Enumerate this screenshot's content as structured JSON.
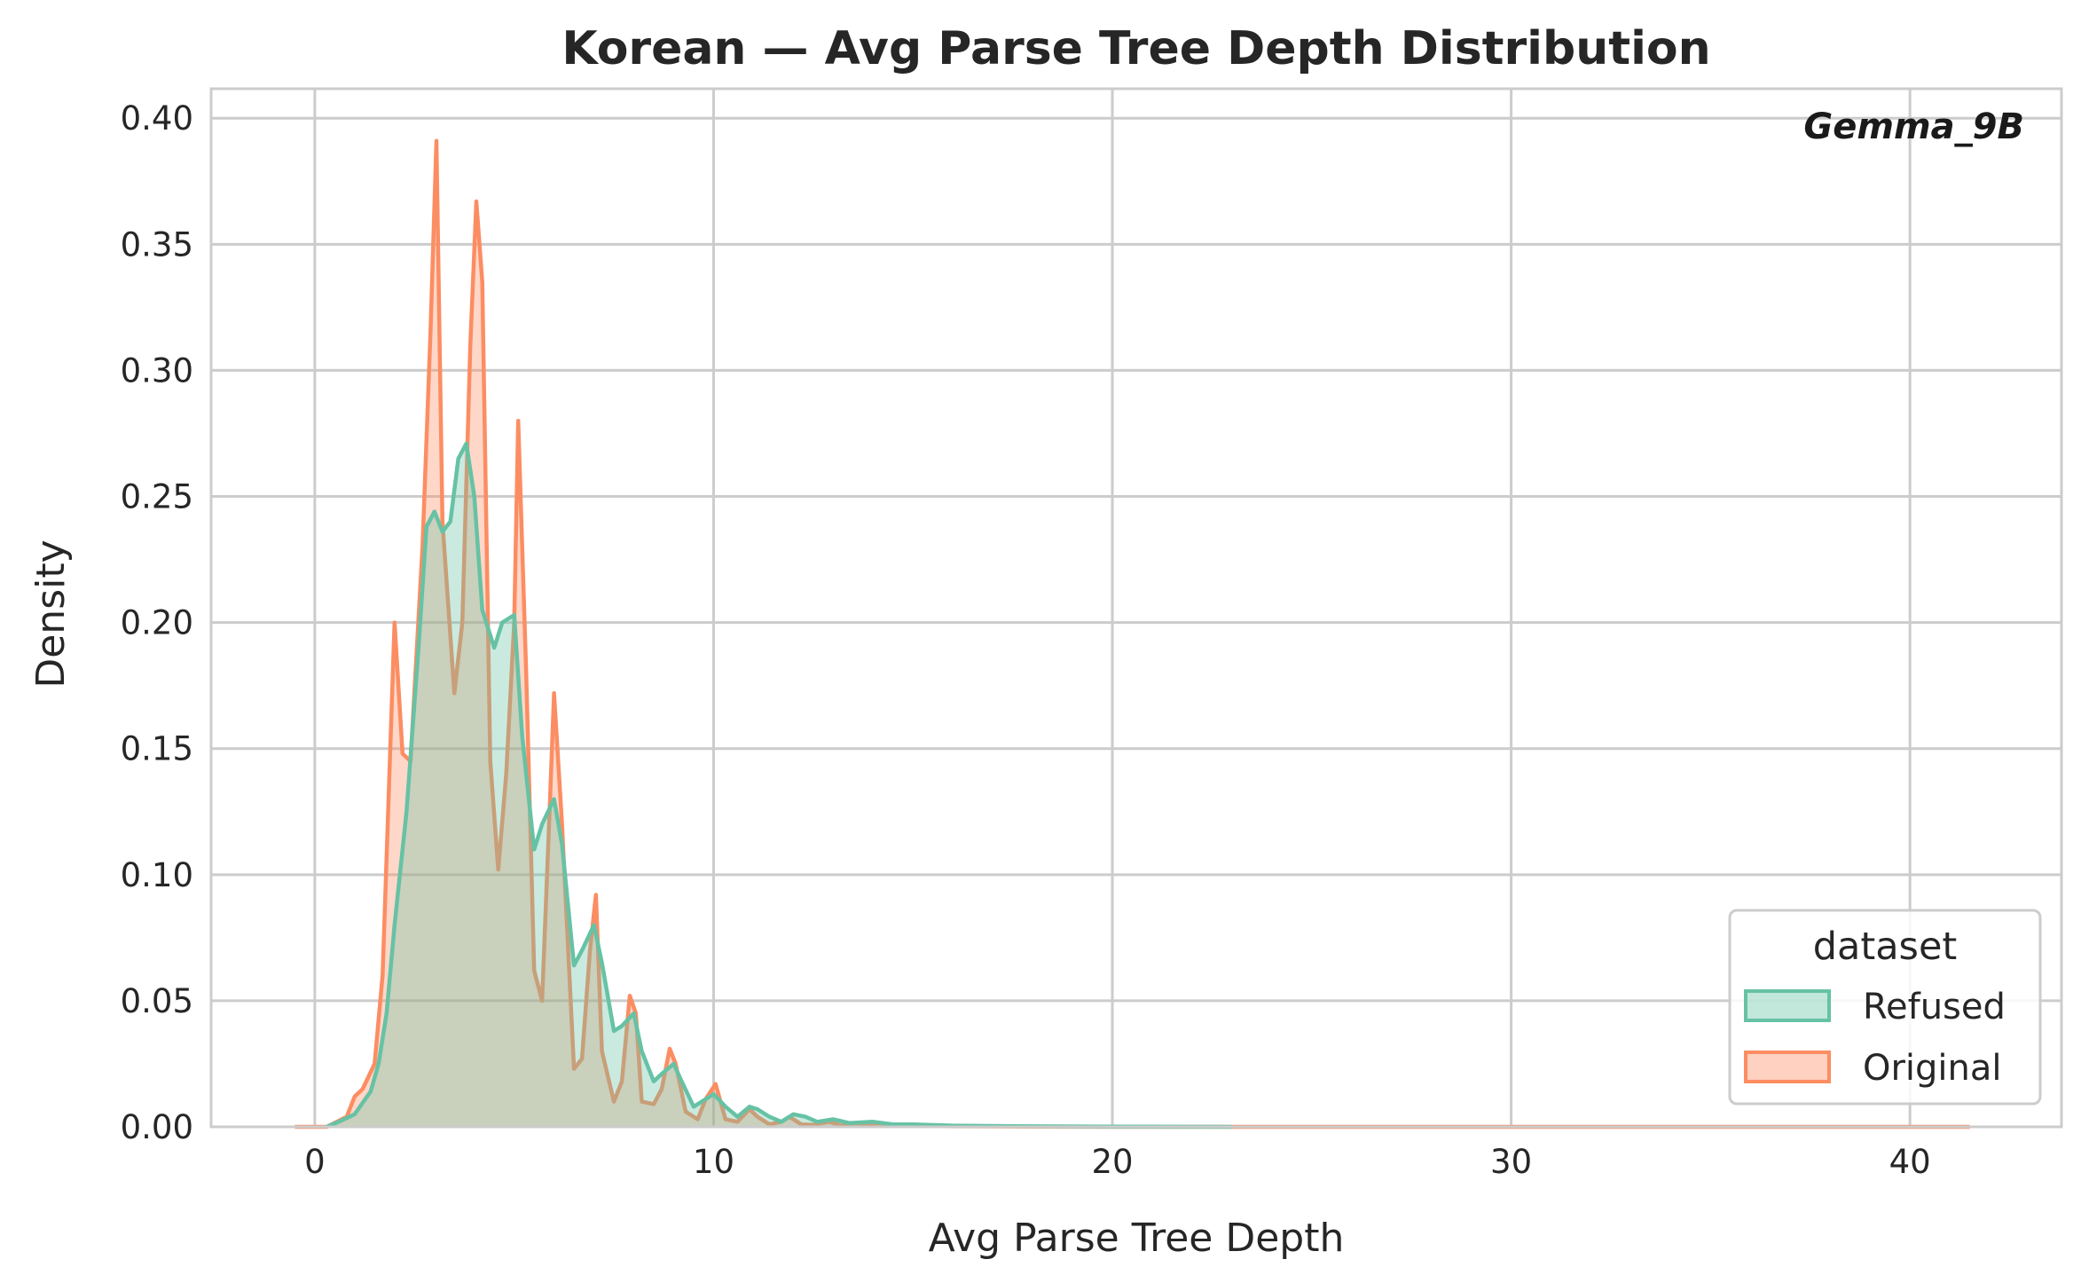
{
  "chart_data": {
    "type": "area",
    "title": "Korean — Avg Parse Tree Depth Distribution",
    "xlabel": "Avg Parse Tree Depth",
    "ylabel": "Density",
    "xlim": [
      -2.6,
      43.8
    ],
    "ylim": [
      0,
      0.4117
    ],
    "xticks": [
      0,
      10,
      20,
      30,
      40
    ],
    "yticks": [
      0.0,
      0.05,
      0.1,
      0.15,
      0.2,
      0.25,
      0.3,
      0.35,
      0.4
    ],
    "xtick_labels": [
      "0",
      "10",
      "20",
      "30",
      "40"
    ],
    "ytick_labels": [
      "0.00",
      "0.05",
      "0.10",
      "0.15",
      "0.20",
      "0.25",
      "0.30",
      "0.35",
      "0.40"
    ],
    "grid": true,
    "annotation": "Gemma_9B",
    "legend": {
      "title": "dataset",
      "placement": "lower-right"
    },
    "series": [
      {
        "name": "Original",
        "color": "#fc8d62",
        "x": [
          -0.5,
          0.3,
          0.8,
          1.0,
          1.2,
          1.5,
          1.7,
          2.0,
          2.2,
          2.4,
          2.7,
          2.9,
          3.05,
          3.2,
          3.5,
          3.7,
          3.9,
          4.05,
          4.2,
          4.4,
          4.6,
          4.8,
          5.0,
          5.1,
          5.3,
          5.5,
          5.7,
          5.9,
          6.0,
          6.2,
          6.5,
          6.7,
          6.9,
          7.05,
          7.2,
          7.5,
          7.7,
          7.9,
          8.05,
          8.2,
          8.5,
          8.7,
          8.9,
          9.05,
          9.3,
          9.6,
          9.8,
          10.05,
          10.3,
          10.6,
          10.9,
          11.1,
          11.4,
          11.7,
          11.9,
          12.2,
          12.5,
          12.9,
          13.2,
          13.6,
          14.0,
          15.0,
          16.0,
          18.0,
          20.0,
          25.0,
          30.0,
          35.0,
          41.5
        ],
        "values": [
          0.0,
          0.0,
          0.004,
          0.012,
          0.015,
          0.025,
          0.06,
          0.2,
          0.148,
          0.145,
          0.23,
          0.315,
          0.391,
          0.24,
          0.172,
          0.2,
          0.31,
          0.367,
          0.335,
          0.145,
          0.102,
          0.14,
          0.2,
          0.28,
          0.18,
          0.062,
          0.05,
          0.13,
          0.172,
          0.12,
          0.023,
          0.027,
          0.07,
          0.092,
          0.03,
          0.01,
          0.018,
          0.052,
          0.045,
          0.01,
          0.009,
          0.015,
          0.031,
          0.025,
          0.006,
          0.003,
          0.011,
          0.017,
          0.003,
          0.002,
          0.007,
          0.004,
          0.001,
          0.002,
          0.004,
          0.001,
          0.0008,
          0.002,
          0.0005,
          0.001,
          0.0005,
          0.0004,
          0.0002,
          0.0001,
          0.0,
          0.0,
          0.0,
          0.0,
          0.0
        ]
      },
      {
        "name": "Refused",
        "color": "#66c2a5",
        "x": [
          0.3,
          0.6,
          1.0,
          1.4,
          1.6,
          1.8,
          2.0,
          2.3,
          2.6,
          2.8,
          3.0,
          3.2,
          3.4,
          3.6,
          3.8,
          4.0,
          4.2,
          4.5,
          4.7,
          5.0,
          5.2,
          5.5,
          5.7,
          6.0,
          6.2,
          6.5,
          6.7,
          7.0,
          7.2,
          7.5,
          7.7,
          8.0,
          8.2,
          8.5,
          8.7,
          9.0,
          9.2,
          9.5,
          9.7,
          10.0,
          10.3,
          10.6,
          10.9,
          11.1,
          11.4,
          11.7,
          12.0,
          12.3,
          12.6,
          13.0,
          13.4,
          14.0,
          14.5,
          15.0,
          16.0,
          18.0,
          20.0,
          23.0
        ],
        "values": [
          0.0,
          0.002,
          0.005,
          0.014,
          0.025,
          0.045,
          0.08,
          0.125,
          0.19,
          0.238,
          0.244,
          0.236,
          0.24,
          0.265,
          0.271,
          0.25,
          0.205,
          0.19,
          0.2,
          0.203,
          0.155,
          0.11,
          0.12,
          0.13,
          0.112,
          0.064,
          0.07,
          0.08,
          0.065,
          0.038,
          0.04,
          0.045,
          0.03,
          0.018,
          0.021,
          0.025,
          0.018,
          0.008,
          0.01,
          0.013,
          0.008,
          0.004,
          0.008,
          0.007,
          0.004,
          0.002,
          0.005,
          0.004,
          0.002,
          0.003,
          0.0015,
          0.002,
          0.001,
          0.001,
          0.0005,
          0.0002,
          0.0001,
          0.0
        ]
      }
    ]
  }
}
